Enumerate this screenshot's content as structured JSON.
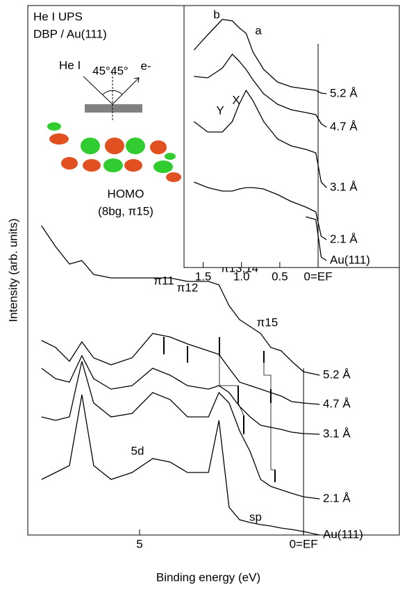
{
  "chart_data": [
    {
      "type": "line",
      "x_label": "Binding energy (eV)",
      "y_label": "Intensity (arb. units)",
      "color": "#000000",
      "xlim": [
        8.41,
        -2.92
      ],
      "ylim": [
        0,
        762
      ],
      "xticks": [
        5,
        {
          "value": 0,
          "label": "0=EF"
        }
      ],
      "annotations": [
        "He I UPS",
        "DBP / Au(111)",
        "He I",
        "45°",
        "45°",
        "e-",
        "HOMO",
        "(8bg, π15)",
        "5d",
        "sp",
        "π11",
        "π12",
        "π13,14",
        "π15"
      ],
      "x": [
        7.99,
        7.56,
        7.14,
        6.76,
        6.4,
        5.87,
        5.23,
        4.6,
        4.07,
        3.54,
        2.9,
        2.58,
        2.27,
        1.95,
        1.63,
        1.31,
        1.0,
        0.68,
        0.36,
        0.0,
        -0.49
      ],
      "series": [
        {
          "name": "5.2 Å",
          "values": [
            445,
            415,
            390,
            395,
            375,
            370,
            370,
            370,
            370,
            365,
            365,
            360,
            330,
            310,
            300,
            290,
            270,
            265,
            250,
            235,
            230
          ]
        },
        {
          "name": "4.7 Å",
          "values": [
            280,
            270,
            250,
            278,
            255,
            245,
            255,
            290,
            285,
            275,
            265,
            260,
            240,
            220,
            215,
            210,
            205,
            200,
            192,
            190,
            188
          ]
        },
        {
          "name": "3.1 Å",
          "values": [
            240,
            225,
            220,
            258,
            225,
            210,
            215,
            240,
            230,
            215,
            210,
            215,
            205,
            185,
            170,
            158,
            155,
            152,
            148,
            146,
            145
          ]
        },
        {
          "name": "2.1 Å",
          "values": [
            170,
            165,
            170,
            250,
            190,
            170,
            175,
            205,
            195,
            170,
            170,
            205,
            190,
            150,
            120,
            80,
            70,
            65,
            60,
            55,
            52
          ]
        },
        {
          "name": "Au(111)",
          "values": [
            80,
            90,
            100,
            202,
            100,
            80,
            90,
            110,
            105,
            90,
            90,
            165,
            40,
            22,
            18,
            15,
            13,
            10,
            8,
            5,
            0
          ]
        }
      ]
    },
    {
      "type": "line",
      "color": "#000000",
      "xlim": [
        1.75,
        -1.06
      ],
      "ylim": [
        0,
        377
      ],
      "xticks": [
        1.5,
        {
          "value": 1.0,
          "label": "1.0"
        },
        0.5,
        {
          "value": 0,
          "label": "0=EF"
        }
      ],
      "annotations": [
        "b",
        "a",
        "Y",
        "X"
      ],
      "x": [
        1.62,
        1.44,
        1.25,
        1.12,
        1.03,
        0.94,
        0.85,
        0.71,
        0.53,
        0.35,
        0.16,
        0.03,
        -0.04,
        -0.11
      ],
      "series": [
        {
          "name": "5.2 Å",
          "values": [
            313,
            335,
            357,
            355,
            345,
            337,
            310,
            285,
            267,
            260,
            257,
            255,
            251,
            250
          ]
        },
        {
          "name": "4.7 Å",
          "values": [
            275,
            273,
            287,
            307,
            297,
            285,
            270,
            250,
            235,
            227,
            223,
            220,
            207,
            202
          ]
        },
        {
          "name": "3.1 Å",
          "values": [
            210,
            195,
            195,
            210,
            235,
            255,
            240,
            210,
            185,
            175,
            170,
            165,
            123,
            115
          ]
        },
        {
          "name": "2.1 Å",
          "values": [
            123,
            115,
            110,
            110,
            113,
            115,
            115,
            113,
            105,
            95,
            87,
            80,
            45,
            40
          ]
        },
        {
          "name": "Au(111)",
          "values": [
            null,
            null,
            null,
            null,
            null,
            null,
            null,
            null,
            null,
            null,
            73,
            69,
            15,
            10
          ]
        }
      ]
    }
  ]
}
